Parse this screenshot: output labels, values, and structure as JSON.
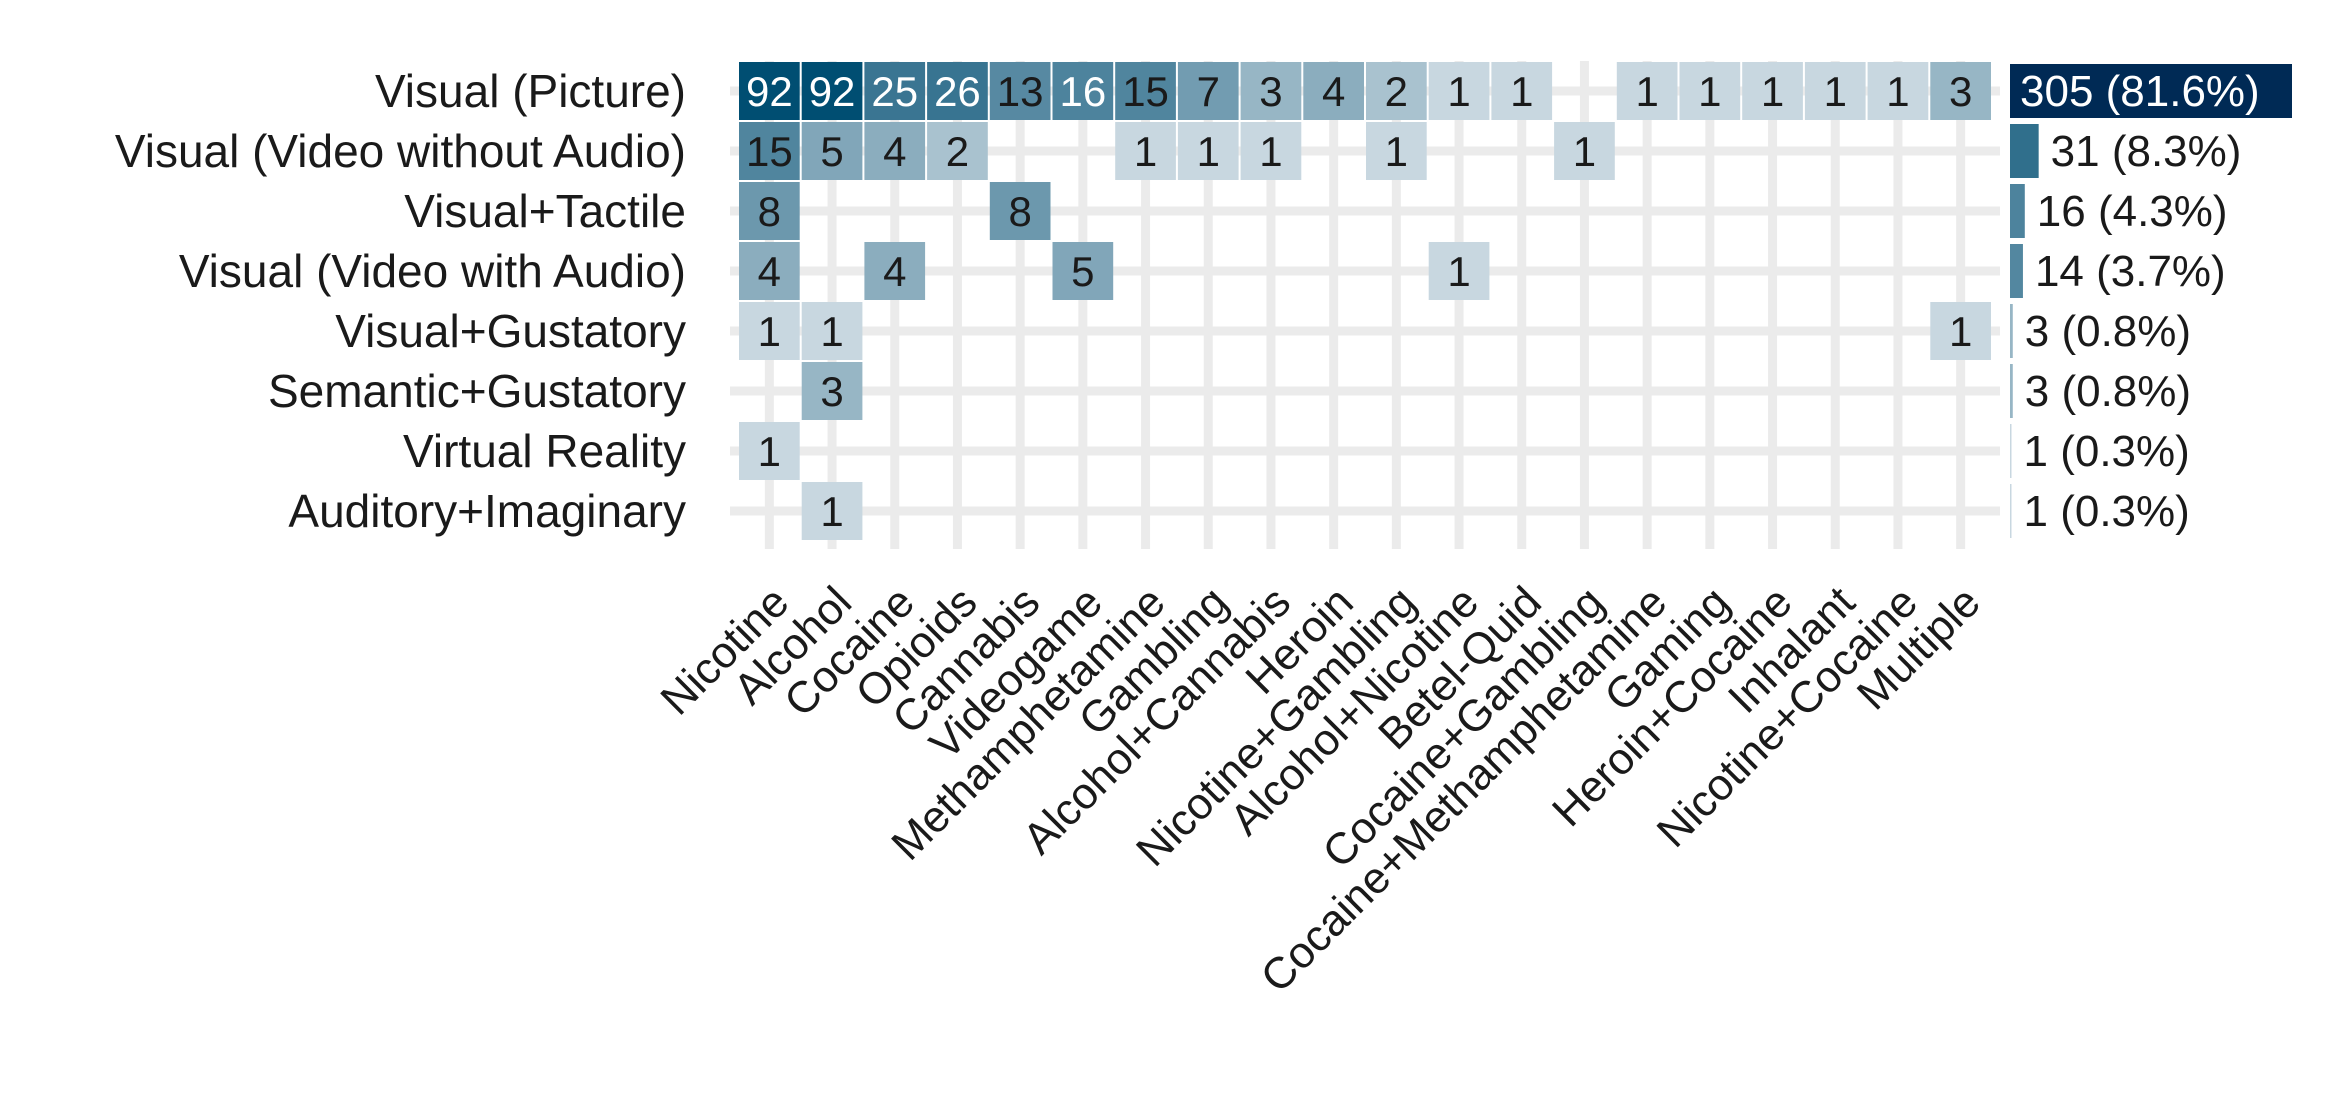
{
  "chart_data": {
    "type": "heatmap",
    "rows": [
      "Visual (Picture)",
      "Visual (Video without Audio)",
      "Visual+Tactile",
      "Visual (Video with Audio)",
      "Visual+Gustatory",
      "Semantic+Gustatory",
      "Virtual Reality",
      "Auditory+Imaginary"
    ],
    "columns": [
      "Nicotine",
      "Alcohol",
      "Cocaine",
      "Opioids",
      "Cannabis",
      "Videogame",
      "Methamphetamine",
      "Gambling",
      "Alcohol+Cannabis",
      "Heroin",
      "Nicotine+Gambling",
      "Alcohol+Nicotine",
      "Betel-Quid",
      "Cocaine+Gambling",
      "Cocaine+Methamphetamine",
      "Gaming",
      "Heroin+Cocaine",
      "Inhalant",
      "Nicotine+Cocaine",
      "Multiple"
    ],
    "values": [
      [
        92,
        92,
        25,
        26,
        13,
        16,
        15,
        7,
        3,
        4,
        2,
        1,
        1,
        null,
        1,
        1,
        1,
        1,
        1,
        3
      ],
      [
        15,
        5,
        4,
        2,
        null,
        null,
        1,
        1,
        1,
        null,
        1,
        null,
        null,
        1,
        null,
        null,
        null,
        null,
        null,
        null
      ],
      [
        8,
        null,
        null,
        null,
        8,
        null,
        null,
        null,
        null,
        null,
        null,
        null,
        null,
        null,
        null,
        null,
        null,
        null,
        null,
        null
      ],
      [
        4,
        null,
        4,
        null,
        null,
        5,
        null,
        null,
        null,
        null,
        null,
        1,
        null,
        null,
        null,
        null,
        null,
        null,
        null,
        null
      ],
      [
        1,
        1,
        null,
        null,
        null,
        null,
        null,
        null,
        null,
        null,
        null,
        null,
        null,
        null,
        null,
        null,
        null,
        null,
        null,
        1
      ],
      [
        null,
        3,
        null,
        null,
        null,
        null,
        null,
        null,
        null,
        null,
        null,
        null,
        null,
        null,
        null,
        null,
        null,
        null,
        null,
        null
      ],
      [
        1,
        null,
        null,
        null,
        null,
        null,
        null,
        null,
        null,
        null,
        null,
        null,
        null,
        null,
        null,
        null,
        null,
        null,
        null,
        null
      ],
      [
        null,
        1,
        null,
        null,
        null,
        null,
        null,
        null,
        null,
        null,
        null,
        null,
        null,
        null,
        null,
        null,
        null,
        null,
        null,
        null
      ]
    ],
    "row_totals": [
      {
        "count": 305,
        "label": "305 (81.6%)"
      },
      {
        "count": 31,
        "label": "31 (8.3%)"
      },
      {
        "count": 16,
        "label": "16 (4.3%)"
      },
      {
        "count": 14,
        "label": "14 (3.7%)"
      },
      {
        "count": 3,
        "label": "3 (0.8%)"
      },
      {
        "count": 3,
        "label": "3 (0.8%)"
      },
      {
        "count": 1,
        "label": "1 (0.3%)"
      },
      {
        "count": 1,
        "label": "1 (0.3%)"
      }
    ],
    "colors": {
      "scale": [
        "#c8d7e0",
        "#004e72"
      ],
      "grid": "#ebebeb",
      "total_bar": "#004e72"
    },
    "grid": true,
    "legend": "none"
  }
}
